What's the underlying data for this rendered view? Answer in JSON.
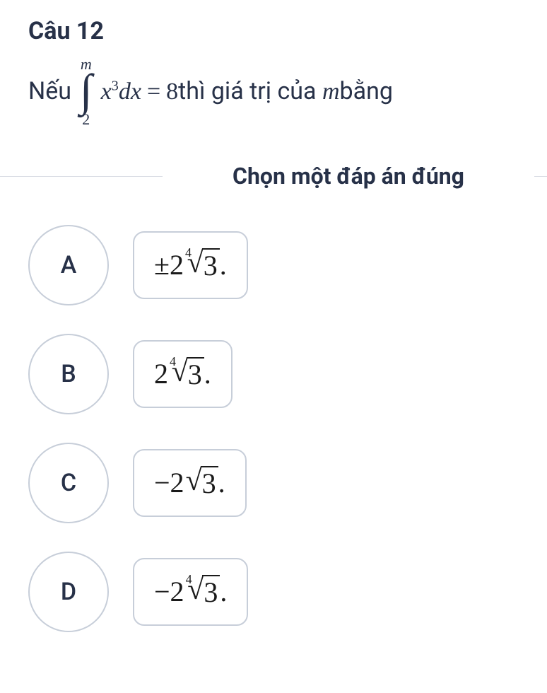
{
  "question": {
    "title": "Câu 12",
    "prefix": "Nếu",
    "integral_upper": "m",
    "integral_lower": "2",
    "integrand_var": "x",
    "integrand_exp": "3",
    "integrand_dx": "dx",
    "equals": "=",
    "rhs_value": "8",
    "mid_text": "thì giá trị của ",
    "var_m": "m",
    "suffix": "bằng"
  },
  "instruction": "Chọn một đáp án đúng",
  "options": [
    {
      "letter": "A",
      "lead": "±2",
      "root_index": "4",
      "radicand": "3",
      "tail": "."
    },
    {
      "letter": "B",
      "lead": "2",
      "root_index": "4",
      "radicand": "3",
      "tail": "."
    },
    {
      "letter": "C",
      "lead": "−2",
      "root_index": "",
      "radicand": "3",
      "tail": "."
    },
    {
      "letter": "D",
      "lead": "−2",
      "root_index": "4",
      "radicand": "3",
      "tail": "."
    }
  ],
  "colors": {
    "text": "#273148",
    "border": "#c7ced9",
    "divider": "#d8dce3",
    "background": "#ffffff"
  }
}
